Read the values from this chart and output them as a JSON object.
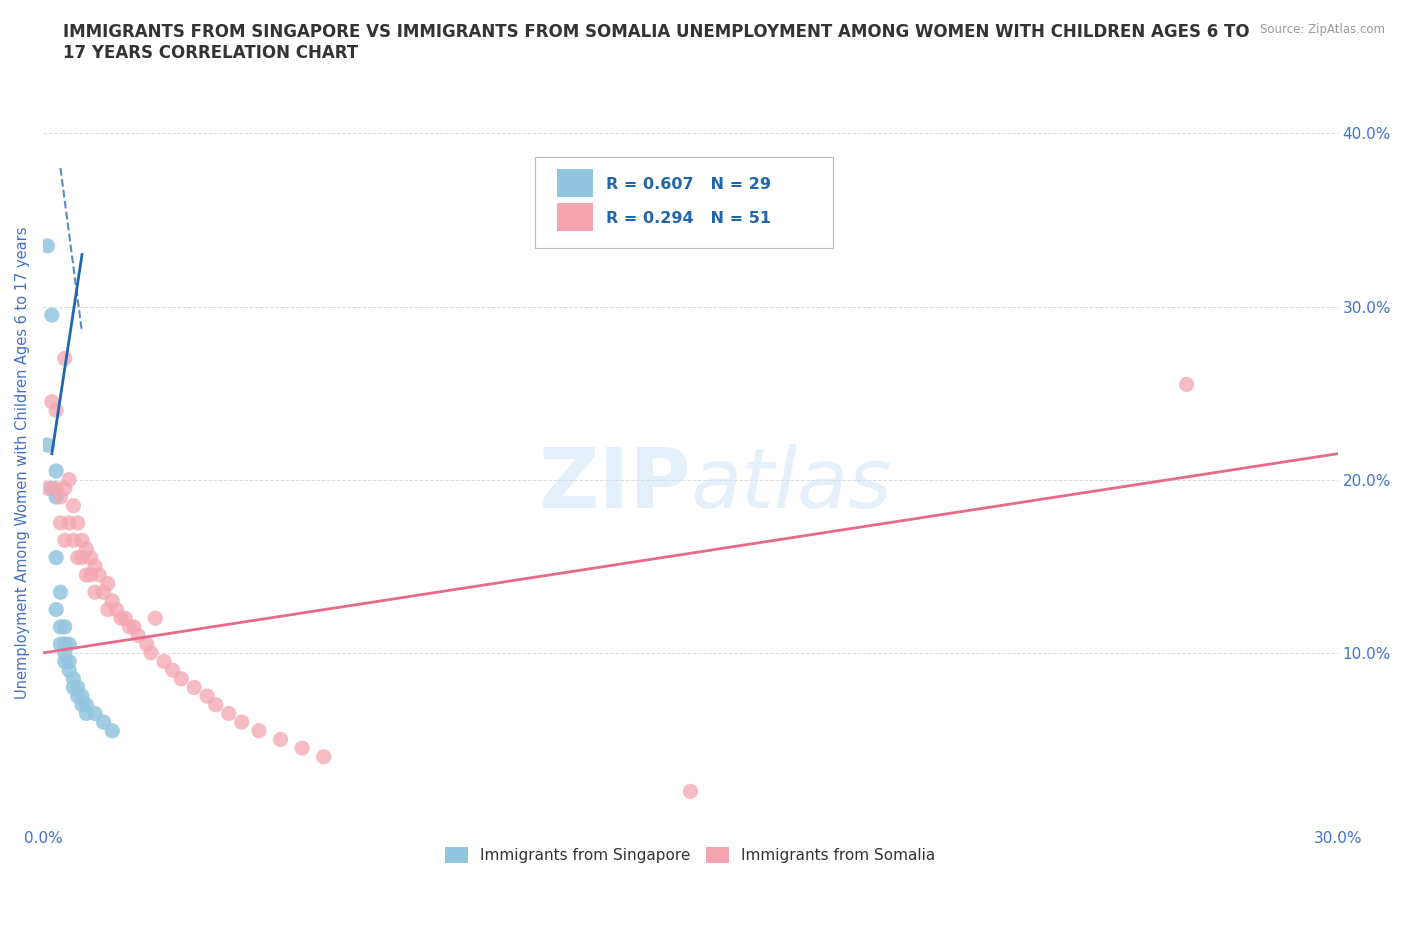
{
  "title": "IMMIGRANTS FROM SINGAPORE VS IMMIGRANTS FROM SOMALIA UNEMPLOYMENT AMONG WOMEN WITH CHILDREN AGES 6 TO\n17 YEARS CORRELATION CHART",
  "source_text": "Source: ZipAtlas.com",
  "ylabel": "Unemployment Among Women with Children Ages 6 to 17 years",
  "watermark": "ZIPatlas",
  "xlim": [
    0.0,
    0.3
  ],
  "ylim": [
    0.0,
    0.42
  ],
  "xtick_pos": [
    0.0,
    0.05,
    0.1,
    0.15,
    0.2,
    0.25,
    0.3
  ],
  "xtick_labels": [
    "0.0%",
    "",
    "",
    "",
    "",
    "",
    "30.0%"
  ],
  "ytick_pos": [
    0.0,
    0.1,
    0.2,
    0.3,
    0.4
  ],
  "ytick_labels_right": [
    "",
    "10.0%",
    "20.0%",
    "30.0%",
    "40.0%"
  ],
  "singapore_color": "#92c5de",
  "somalia_color": "#f4a5b0",
  "singapore_line_color": "#2166ac",
  "somalia_line_color": "#e8698a",
  "singapore_R": 0.607,
  "singapore_N": 29,
  "somalia_R": 0.294,
  "somalia_N": 51,
  "sg_x": [
    0.001,
    0.001,
    0.002,
    0.002,
    0.003,
    0.003,
    0.003,
    0.003,
    0.004,
    0.004,
    0.004,
    0.005,
    0.005,
    0.005,
    0.005,
    0.006,
    0.006,
    0.006,
    0.007,
    0.007,
    0.008,
    0.008,
    0.009,
    0.009,
    0.01,
    0.01,
    0.012,
    0.014,
    0.016
  ],
  "sg_y": [
    0.335,
    0.22,
    0.295,
    0.195,
    0.205,
    0.19,
    0.155,
    0.125,
    0.135,
    0.115,
    0.105,
    0.115,
    0.105,
    0.1,
    0.095,
    0.105,
    0.095,
    0.09,
    0.085,
    0.08,
    0.08,
    0.075,
    0.075,
    0.07,
    0.07,
    0.065,
    0.065,
    0.06,
    0.055
  ],
  "so_x": [
    0.001,
    0.002,
    0.003,
    0.003,
    0.004,
    0.004,
    0.005,
    0.005,
    0.005,
    0.006,
    0.006,
    0.007,
    0.007,
    0.008,
    0.008,
    0.009,
    0.009,
    0.01,
    0.01,
    0.011,
    0.011,
    0.012,
    0.012,
    0.013,
    0.014,
    0.015,
    0.015,
    0.016,
    0.017,
    0.018,
    0.019,
    0.02,
    0.021,
    0.022,
    0.024,
    0.025,
    0.026,
    0.028,
    0.03,
    0.032,
    0.035,
    0.038,
    0.04,
    0.043,
    0.046,
    0.05,
    0.055,
    0.06,
    0.065,
    0.15,
    0.265
  ],
  "so_y": [
    0.195,
    0.245,
    0.24,
    0.195,
    0.19,
    0.175,
    0.27,
    0.195,
    0.165,
    0.2,
    0.175,
    0.185,
    0.165,
    0.175,
    0.155,
    0.165,
    0.155,
    0.16,
    0.145,
    0.155,
    0.145,
    0.15,
    0.135,
    0.145,
    0.135,
    0.14,
    0.125,
    0.13,
    0.125,
    0.12,
    0.12,
    0.115,
    0.115,
    0.11,
    0.105,
    0.1,
    0.12,
    0.095,
    0.09,
    0.085,
    0.08,
    0.075,
    0.07,
    0.065,
    0.06,
    0.055,
    0.05,
    0.045,
    0.04,
    0.02,
    0.255
  ],
  "background_color": "#ffffff",
  "grid_color": "#cccccc",
  "title_color": "#333333",
  "tick_label_color": "#4472c4",
  "legend_label_color": "#333333"
}
